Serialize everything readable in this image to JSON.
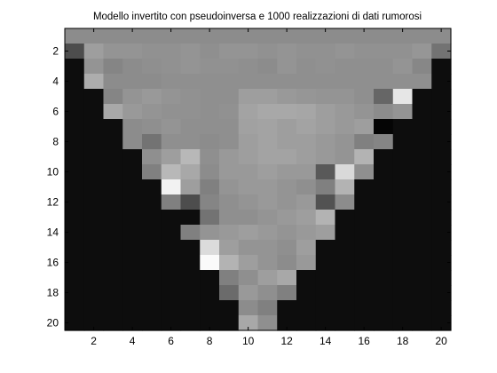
{
  "chart_data": {
    "type": "heatmap",
    "title": "Modello invertito con pseudoinversa e 1000 realizzazioni di dati rumorosi",
    "xlabel": "",
    "ylabel": "",
    "colormap": "gray",
    "grid": false,
    "xlim": [
      0.5,
      20.5
    ],
    "ylim": [
      0.5,
      20.5
    ],
    "y_direction": "reversed",
    "xticks": [
      "2",
      "4",
      "6",
      "8",
      "10",
      "12",
      "14",
      "16",
      "18",
      "20"
    ],
    "yticks": [
      "2",
      "4",
      "6",
      "8",
      "10",
      "12",
      "14",
      "16",
      "18",
      "20"
    ],
    "rows": [
      [
        0.55,
        0.55,
        0.55,
        0.55,
        0.55,
        0.55,
        0.55,
        0.55,
        0.55,
        0.55,
        0.55,
        0.55,
        0.55,
        0.55,
        0.55,
        0.55,
        0.55,
        0.55,
        0.55,
        0.55
      ],
      [
        0.3,
        0.62,
        0.58,
        0.58,
        0.57,
        0.57,
        0.58,
        0.56,
        0.58,
        0.58,
        0.57,
        0.58,
        0.57,
        0.57,
        0.58,
        0.57,
        0.57,
        0.57,
        0.59,
        0.45
      ],
      [
        0.05,
        0.58,
        0.52,
        0.55,
        0.56,
        0.57,
        0.58,
        0.57,
        0.57,
        0.56,
        0.55,
        0.58,
        0.56,
        0.57,
        0.56,
        0.56,
        0.56,
        0.58,
        0.53,
        0.05
      ],
      [
        0.05,
        0.68,
        0.55,
        0.55,
        0.55,
        0.56,
        0.56,
        0.56,
        0.56,
        0.56,
        0.56,
        0.56,
        0.56,
        0.56,
        0.56,
        0.56,
        0.56,
        0.56,
        0.56,
        0.05
      ],
      [
        0.05,
        0.05,
        0.52,
        0.58,
        0.6,
        0.58,
        0.57,
        0.56,
        0.56,
        0.62,
        0.62,
        0.6,
        0.59,
        0.58,
        0.58,
        0.56,
        0.4,
        0.9,
        0.05,
        0.05
      ],
      [
        0.05,
        0.05,
        0.66,
        0.6,
        0.58,
        0.57,
        0.57,
        0.56,
        0.57,
        0.64,
        0.66,
        0.66,
        0.65,
        0.62,
        0.6,
        0.58,
        0.55,
        0.58,
        0.05,
        0.05
      ],
      [
        0.05,
        0.05,
        0.05,
        0.55,
        0.56,
        0.58,
        0.56,
        0.56,
        0.56,
        0.63,
        0.64,
        0.62,
        0.64,
        0.62,
        0.6,
        0.62,
        0.02,
        0.05,
        0.05,
        0.05
      ],
      [
        0.05,
        0.05,
        0.05,
        0.55,
        0.45,
        0.56,
        0.56,
        0.55,
        0.56,
        0.62,
        0.64,
        0.62,
        0.62,
        0.6,
        0.58,
        0.5,
        0.52,
        0.05,
        0.05,
        0.05
      ],
      [
        0.05,
        0.05,
        0.05,
        0.05,
        0.56,
        0.62,
        0.72,
        0.56,
        0.6,
        0.62,
        0.64,
        0.64,
        0.62,
        0.6,
        0.58,
        0.7,
        0.05,
        0.05,
        0.05,
        0.05
      ],
      [
        0.05,
        0.05,
        0.05,
        0.05,
        0.5,
        0.72,
        0.66,
        0.55,
        0.6,
        0.6,
        0.62,
        0.6,
        0.6,
        0.35,
        0.85,
        0.56,
        0.05,
        0.05,
        0.05,
        0.05
      ],
      [
        0.05,
        0.05,
        0.05,
        0.05,
        0.05,
        0.95,
        0.62,
        0.5,
        0.58,
        0.6,
        0.6,
        0.58,
        0.56,
        0.5,
        0.7,
        0.05,
        0.05,
        0.05,
        0.05,
        0.05
      ],
      [
        0.05,
        0.05,
        0.05,
        0.05,
        0.05,
        0.5,
        0.3,
        0.52,
        0.56,
        0.58,
        0.6,
        0.58,
        0.6,
        0.32,
        0.55,
        0.05,
        0.05,
        0.05,
        0.05,
        0.05
      ],
      [
        0.05,
        0.05,
        0.05,
        0.05,
        0.05,
        0.05,
        0.05,
        0.45,
        0.56,
        0.56,
        0.58,
        0.6,
        0.62,
        0.7,
        0.05,
        0.05,
        0.05,
        0.05,
        0.05,
        0.05
      ],
      [
        0.05,
        0.05,
        0.05,
        0.05,
        0.05,
        0.05,
        0.5,
        0.58,
        0.6,
        0.62,
        0.6,
        0.58,
        0.6,
        0.62,
        0.05,
        0.05,
        0.05,
        0.05,
        0.05,
        0.05
      ],
      [
        0.05,
        0.05,
        0.05,
        0.05,
        0.05,
        0.05,
        0.05,
        0.86,
        0.62,
        0.58,
        0.58,
        0.56,
        0.62,
        0.05,
        0.05,
        0.05,
        0.05,
        0.05,
        0.05,
        0.05
      ],
      [
        0.05,
        0.05,
        0.05,
        0.05,
        0.05,
        0.05,
        0.05,
        0.98,
        0.7,
        0.62,
        0.58,
        0.55,
        0.6,
        0.05,
        0.05,
        0.05,
        0.05,
        0.05,
        0.05,
        0.05
      ],
      [
        0.05,
        0.05,
        0.05,
        0.05,
        0.05,
        0.05,
        0.05,
        0.05,
        0.5,
        0.56,
        0.62,
        0.66,
        0.05,
        0.05,
        0.05,
        0.05,
        0.05,
        0.05,
        0.05,
        0.05
      ],
      [
        0.05,
        0.05,
        0.05,
        0.05,
        0.05,
        0.05,
        0.05,
        0.05,
        0.42,
        0.6,
        0.56,
        0.5,
        0.05,
        0.05,
        0.05,
        0.05,
        0.05,
        0.05,
        0.05,
        0.05
      ],
      [
        0.05,
        0.05,
        0.05,
        0.05,
        0.05,
        0.05,
        0.05,
        0.05,
        0.05,
        0.55,
        0.5,
        0.05,
        0.05,
        0.05,
        0.05,
        0.05,
        0.05,
        0.05,
        0.05,
        0.05
      ],
      [
        0.05,
        0.05,
        0.05,
        0.05,
        0.05,
        0.05,
        0.05,
        0.05,
        0.05,
        0.66,
        0.56,
        0.05,
        0.05,
        0.05,
        0.05,
        0.05,
        0.05,
        0.05,
        0.05,
        0.05
      ]
    ]
  }
}
